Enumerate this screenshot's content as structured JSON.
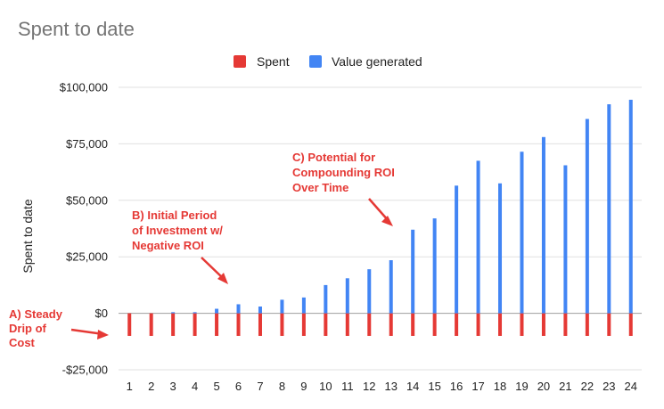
{
  "chart_data": {
    "type": "bar",
    "title": "Spent to date",
    "ylabel": "Spent to date",
    "xlabel": "",
    "ylim": [
      -25000,
      100000
    ],
    "yticks": [
      {
        "value": 100000,
        "label": "$100,000"
      },
      {
        "value": 75000,
        "label": "$75,000"
      },
      {
        "value": 50000,
        "label": "$50,000"
      },
      {
        "value": 25000,
        "label": "$25,000"
      },
      {
        "value": 0,
        "label": "$0"
      },
      {
        "value": -25000,
        "label": "-$25,000"
      }
    ],
    "categories": [
      "1",
      "2",
      "3",
      "4",
      "5",
      "6",
      "7",
      "8",
      "9",
      "10",
      "11",
      "12",
      "13",
      "14",
      "15",
      "16",
      "17",
      "18",
      "19",
      "20",
      "21",
      "22",
      "23",
      "24"
    ],
    "legend_position": "top",
    "grid": true,
    "series": [
      {
        "name": "Spent",
        "color": "#e53935",
        "values": [
          -10000,
          -10000,
          -10000,
          -10000,
          -10000,
          -10000,
          -10000,
          -10000,
          -10000,
          -10000,
          -10000,
          -10000,
          -10000,
          -10000,
          -10000,
          -10000,
          -10000,
          -10000,
          -10000,
          -10000,
          -10000,
          -10000,
          -10000,
          -10000
        ]
      },
      {
        "name": "Value generated",
        "color": "#4285f4",
        "values": [
          0,
          0,
          500,
          500,
          2000,
          4000,
          3000,
          6000,
          7000,
          12500,
          15500,
          19500,
          23500,
          37000,
          42000,
          56500,
          67500,
          57500,
          71500,
          78000,
          65500,
          86000,
          92500,
          94500
        ]
      }
    ],
    "annotations": [
      {
        "id": "a",
        "lines": [
          "A) Steady",
          "Drip of",
          "Cost"
        ]
      },
      {
        "id": "b",
        "lines": [
          "B) Initial Period",
          "of Investment w/",
          "Negative ROI"
        ]
      },
      {
        "id": "c",
        "lines": [
          "C) Potential for",
          "Compounding ROI",
          "Over Time"
        ]
      }
    ]
  }
}
